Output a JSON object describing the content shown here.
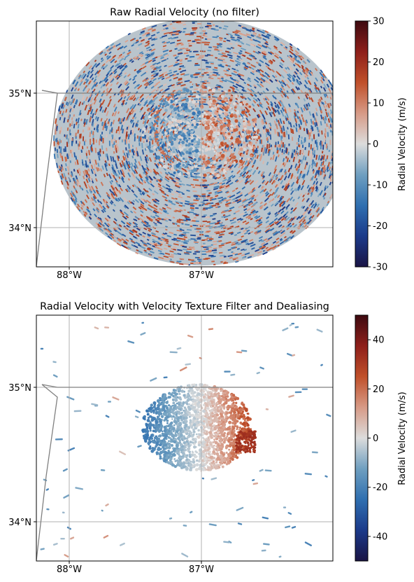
{
  "chart_data": [
    {
      "type": "heatmap",
      "title": "Raw Radial Velocity (no filter)",
      "xlabel": "",
      "ylabel": "",
      "x_ticks": [
        "88°W",
        "87°W"
      ],
      "y_ticks": [
        "35°N",
        "34°N"
      ],
      "x_tick_values": [
        -88,
        -87
      ],
      "y_tick_values": [
        35,
        34
      ],
      "xlim": [
        -88.25,
        -86.0
      ],
      "ylim": [
        33.72,
        35.55
      ],
      "grid": true,
      "colorbar": {
        "label": "Radial Velocity (m/s)",
        "range": [
          -30,
          30
        ],
        "ticks": [
          30,
          20,
          10,
          0,
          -10,
          -20,
          -30
        ],
        "colors": [
          "#1a1445",
          "#1b3a8a",
          "#2f6fb0",
          "#6f9fc0",
          "#dcdcdc",
          "#d79a86",
          "#c0502a",
          "#8e1f1a",
          "#3d0a10"
        ]
      },
      "description_of_field": "Full radar disc of noisy velocity data with a coherent ring-shaped echo near the center",
      "radar_center": {
        "lon": -87.0,
        "lat": 34.65
      },
      "disc_radius_deg": {
        "lon": 1.12,
        "lat": 0.92
      }
    },
    {
      "type": "heatmap",
      "title": "Radial Velocity with Velocity Texture Filter and Dealiasing",
      "xlabel": "",
      "ylabel": "",
      "x_ticks": [
        "88°W",
        "87°W"
      ],
      "y_ticks": [
        "35°N",
        "34°N"
      ],
      "x_tick_values": [
        -88,
        -87
      ],
      "y_tick_values": [
        35,
        34
      ],
      "xlim": [
        -88.25,
        -86.0
      ],
      "ylim": [
        33.72,
        35.55
      ],
      "grid": true,
      "colorbar": {
        "label": "Radial Velocity (m/s)",
        "range": [
          -50,
          50
        ],
        "ticks": [
          40,
          20,
          0,
          -20,
          -40
        ],
        "colors": [
          "#1a1445",
          "#1b3a8a",
          "#2f6fb0",
          "#6f9fc0",
          "#dcdcdc",
          "#d79a86",
          "#c0502a",
          "#8e1f1a",
          "#3d0a10"
        ]
      },
      "description_of_field": "Filtered echo: inbound (negative) to the west, outbound (positive) to the east, with scattered small clutter patches",
      "radar_center": {
        "lon": -87.0,
        "lat": 34.65
      }
    }
  ],
  "boundary_color": "#808080",
  "grid_color": "#b0b0b0"
}
